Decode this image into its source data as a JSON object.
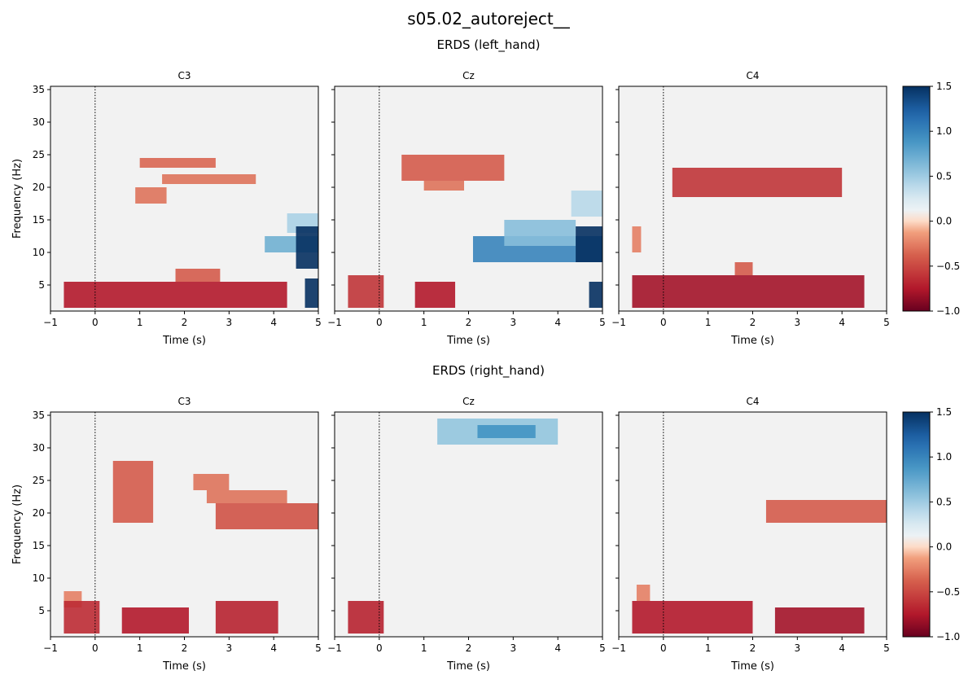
{
  "figure": {
    "title": "s05.02_autoreject__",
    "colorbar_ticks": [
      "1.5",
      "1.0",
      "0.5",
      "0.0",
      "−0.5",
      "−1.0"
    ]
  },
  "chart_data": {
    "type": "heatmap",
    "colormap": "RdBu",
    "vmin": -1.0,
    "vmax": 1.5,
    "xlim": [
      -1,
      5
    ],
    "ylim": [
      1,
      35.5
    ],
    "xlabel": "Time (s)",
    "ylabel": "Frequency (Hz)",
    "xticks": [
      "−1",
      "0",
      "1",
      "2",
      "3",
      "4",
      "5"
    ],
    "yticks": [
      "5",
      "10",
      "15",
      "20",
      "25",
      "30",
      "35"
    ],
    "event_line_x": 0,
    "rows": [
      {
        "title": "ERDS (left_hand)",
        "panels": [
          {
            "channel": "C3",
            "regions": [
              {
                "t0": 1.0,
                "t1": 2.7,
                "f0": 23,
                "f1": 24.5,
                "value": -0.35
              },
              {
                "t0": 1.5,
                "t1": 3.6,
                "f0": 20.5,
                "f1": 22,
                "value": -0.3
              },
              {
                "t0": 0.9,
                "t1": 1.6,
                "f0": 17.5,
                "f1": 20,
                "value": -0.3
              },
              {
                "t0": -0.7,
                "t1": 4.3,
                "f0": 1.5,
                "f1": 5.5,
                "value": -0.75
              },
              {
                "t0": 1.8,
                "t1": 2.8,
                "f0": 5.5,
                "f1": 7.5,
                "value": -0.4
              },
              {
                "t0": 3.8,
                "t1": 5.0,
                "f0": 10,
                "f1": 12.5,
                "value": 0.7
              },
              {
                "t0": 4.3,
                "t1": 5.0,
                "f0": 13,
                "f1": 16,
                "value": 0.45
              },
              {
                "t0": 4.5,
                "t1": 5.0,
                "f0": 7.5,
                "f1": 14,
                "value": 1.5
              },
              {
                "t0": 4.7,
                "t1": 5.0,
                "f0": 1.5,
                "f1": 6,
                "value": 1.5
              }
            ]
          },
          {
            "channel": "Cz",
            "regions": [
              {
                "t0": 0.5,
                "t1": 2.8,
                "f0": 21,
                "f1": 25,
                "value": -0.4
              },
              {
                "t0": 1.0,
                "t1": 1.9,
                "f0": 19.5,
                "f1": 21,
                "value": -0.3
              },
              {
                "t0": -0.7,
                "t1": 0.1,
                "f0": 1.5,
                "f1": 6.5,
                "value": -0.6
              },
              {
                "t0": 0.8,
                "t1": 1.7,
                "f0": 1.5,
                "f1": 5.5,
                "value": -0.75
              },
              {
                "t0": 2.1,
                "t1": 5.0,
                "f0": 8.5,
                "f1": 12.5,
                "value": 1.0
              },
              {
                "t0": 2.8,
                "t1": 4.4,
                "f0": 11,
                "f1": 15,
                "value": 0.6
              },
              {
                "t0": 4.3,
                "t1": 5.0,
                "f0": 15.5,
                "f1": 19.5,
                "value": 0.4
              },
              {
                "t0": 4.4,
                "t1": 5.0,
                "f0": 8.5,
                "f1": 14,
                "value": 1.5
              },
              {
                "t0": 4.7,
                "t1": 5.0,
                "f0": 1.5,
                "f1": 5.5,
                "value": 1.5
              }
            ]
          },
          {
            "channel": "C4",
            "regions": [
              {
                "t0": 0.2,
                "t1": 4.0,
                "f0": 18.5,
                "f1": 23,
                "value": -0.6
              },
              {
                "t0": -0.7,
                "t1": -0.5,
                "f0": 10,
                "f1": 14,
                "value": -0.25
              },
              {
                "t0": -0.7,
                "t1": 4.5,
                "f0": 1.5,
                "f1": 6.5,
                "value": -0.8
              },
              {
                "t0": 1.6,
                "t1": 2.0,
                "f0": 6.5,
                "f1": 8.5,
                "value": -0.4
              }
            ]
          }
        ]
      },
      {
        "title": "ERDS (right_hand)",
        "panels": [
          {
            "channel": "C3",
            "regions": [
              {
                "t0": 0.4,
                "t1": 1.3,
                "f0": 18.5,
                "f1": 28,
                "value": -0.4
              },
              {
                "t0": 2.2,
                "t1": 3.0,
                "f0": 23.5,
                "f1": 26,
                "value": -0.3
              },
              {
                "t0": 2.5,
                "t1": 4.3,
                "f0": 21.5,
                "f1": 23.5,
                "value": -0.3
              },
              {
                "t0": 2.7,
                "t1": 5.0,
                "f0": 17.5,
                "f1": 21.5,
                "value": -0.45
              },
              {
                "t0": -0.7,
                "t1": -0.3,
                "f0": 5.5,
                "f1": 8,
                "value": -0.25
              },
              {
                "t0": -0.7,
                "t1": 0.1,
                "f0": 1.5,
                "f1": 6.5,
                "value": -0.65
              },
              {
                "t0": 0.6,
                "t1": 2.1,
                "f0": 1.5,
                "f1": 5.5,
                "value": -0.75
              },
              {
                "t0": 2.7,
                "t1": 4.1,
                "f0": 1.5,
                "f1": 6.5,
                "value": -0.7
              }
            ]
          },
          {
            "channel": "Cz",
            "regions": [
              {
                "t0": 1.3,
                "t1": 4.0,
                "f0": 30.5,
                "f1": 34.5,
                "value": 0.55
              },
              {
                "t0": 2.2,
                "t1": 3.5,
                "f0": 31.5,
                "f1": 33.5,
                "value": 0.9
              },
              {
                "t0": -0.7,
                "t1": 0.1,
                "f0": 1.5,
                "f1": 6.5,
                "value": -0.7
              }
            ]
          },
          {
            "channel": "C4",
            "regions": [
              {
                "t0": 2.3,
                "t1": 5.0,
                "f0": 18.5,
                "f1": 22,
                "value": -0.4
              },
              {
                "t0": -0.6,
                "t1": -0.3,
                "f0": 6.5,
                "f1": 9,
                "value": -0.25
              },
              {
                "t0": -0.7,
                "t1": 2.0,
                "f0": 1.5,
                "f1": 6.5,
                "value": -0.75
              },
              {
                "t0": 2.5,
                "t1": 4.5,
                "f0": 1.5,
                "f1": 5.5,
                "value": -0.8
              }
            ]
          }
        ]
      }
    ]
  }
}
